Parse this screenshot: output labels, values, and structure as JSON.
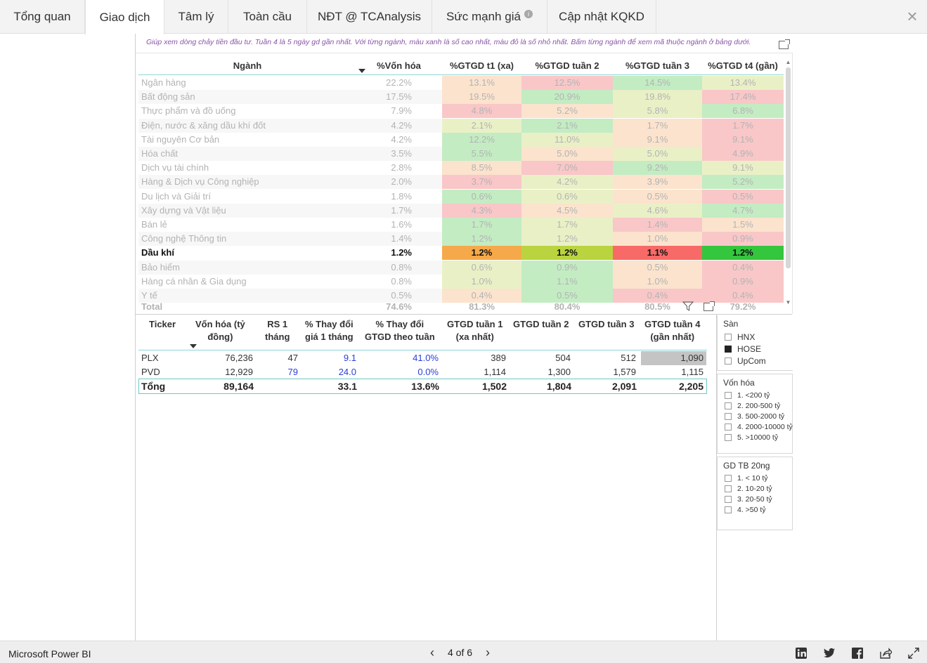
{
  "tabs": [
    {
      "label": "Tổng quan",
      "active": false
    },
    {
      "label": "Giao dịch",
      "active": true
    },
    {
      "label": "Tâm lý",
      "active": false
    },
    {
      "label": "Toàn cầu",
      "active": false
    },
    {
      "label": "NĐT @ TCAnalysis",
      "active": false
    },
    {
      "label": "Sức mạnh giá",
      "active": false,
      "info": "i"
    },
    {
      "label": "Cập nhật KQKD",
      "active": false
    }
  ],
  "close_symbol": "×",
  "hint": "Giúp xem dòng chảy tiền đầu tư. Tuần 4 là 5 ngày gd gần nhất. Với từng ngành, màu xanh là số cao nhất, màu đỏ là số nhỏ nhất. Bấm từng ngành để xem mã thuộc ngành ở bảng dưới.",
  "sector_matrix": {
    "headers": [
      "Ngành",
      "%Vốn hóa",
      "%GTGD t1 (xa)",
      "%GTGD tuần 2",
      "%GTGD tuần 3",
      "%GTGD t4 (gần)"
    ],
    "rows": [
      {
        "name": "Ngân hàng",
        "cap": "22.2%",
        "w": [
          "13.1%",
          "12.5%",
          "14.5%",
          "13.4%"
        ],
        "bg": [
          "#fbe3cd",
          "#f9c7c8",
          "#c3ecc3",
          "#eaf0c6"
        ],
        "hl": false
      },
      {
        "name": "Bất động sản",
        "cap": "17.5%",
        "w": [
          "19.5%",
          "20.9%",
          "19.8%",
          "17.4%"
        ],
        "bg": [
          "#fbe3cd",
          "#c3ecc3",
          "#eaf0c6",
          "#f9c7c8"
        ],
        "hl": false
      },
      {
        "name": "Thực phẩm và đồ uống",
        "cap": "7.9%",
        "w": [
          "4.8%",
          "5.2%",
          "5.8%",
          "6.8%"
        ],
        "bg": [
          "#f9c7c8",
          "#fbe3cd",
          "#eaf0c6",
          "#c3ecc3"
        ],
        "hl": false
      },
      {
        "name": "Điện, nước & xăng dầu khí đốt",
        "cap": "4.2%",
        "w": [
          "2.1%",
          "2.1%",
          "1.7%",
          "1.7%"
        ],
        "bg": [
          "#eaf0c6",
          "#c3ecc3",
          "#fbe3cd",
          "#f9c7c8"
        ],
        "hl": false
      },
      {
        "name": "Tài nguyên Cơ bản",
        "cap": "4.2%",
        "w": [
          "12.2%",
          "11.0%",
          "9.1%",
          "9.1%"
        ],
        "bg": [
          "#c3ecc3",
          "#eaf0c6",
          "#fbe3cd",
          "#f9c7c8"
        ],
        "hl": false
      },
      {
        "name": "Hóa chất",
        "cap": "3.5%",
        "w": [
          "5.5%",
          "5.0%",
          "5.0%",
          "4.9%"
        ],
        "bg": [
          "#c3ecc3",
          "#fbe3cd",
          "#eaf0c6",
          "#f9c7c8"
        ],
        "hl": false
      },
      {
        "name": "Dịch vụ tài chính",
        "cap": "2.8%",
        "w": [
          "8.5%",
          "7.0%",
          "9.2%",
          "9.1%"
        ],
        "bg": [
          "#fbe3cd",
          "#f9c7c8",
          "#c3ecc3",
          "#eaf0c6"
        ],
        "hl": false
      },
      {
        "name": "Hàng & Dịch vụ Công nghiệp",
        "cap": "2.0%",
        "w": [
          "3.7%",
          "4.2%",
          "3.9%",
          "5.2%"
        ],
        "bg": [
          "#f9c7c8",
          "#eaf0c6",
          "#fbe3cd",
          "#c3ecc3"
        ],
        "hl": false
      },
      {
        "name": "Du lịch và Giải trí",
        "cap": "1.8%",
        "w": [
          "0.6%",
          "0.6%",
          "0.5%",
          "0.5%"
        ],
        "bg": [
          "#c3ecc3",
          "#eaf0c6",
          "#fbe3cd",
          "#f9c7c8"
        ],
        "hl": false
      },
      {
        "name": "Xây dựng và Vật liệu",
        "cap": "1.7%",
        "w": [
          "4.3%",
          "4.5%",
          "4.6%",
          "4.7%"
        ],
        "bg": [
          "#f9c7c8",
          "#fbe3cd",
          "#eaf0c6",
          "#c3ecc3"
        ],
        "hl": false
      },
      {
        "name": "Bán lẻ",
        "cap": "1.6%",
        "w": [
          "1.7%",
          "1.7%",
          "1.4%",
          "1.5%"
        ],
        "bg": [
          "#c3ecc3",
          "#eaf0c6",
          "#f9c7c8",
          "#fbe3cd"
        ],
        "hl": false
      },
      {
        "name": "Công nghệ Thông tin",
        "cap": "1.4%",
        "w": [
          "1.2%",
          "1.2%",
          "1.0%",
          "0.9%"
        ],
        "bg": [
          "#c3ecc3",
          "#eaf0c6",
          "#fbe3cd",
          "#f9c7c8"
        ],
        "hl": false
      },
      {
        "name": "Dầu khí",
        "cap": "1.2%",
        "w": [
          "1.2%",
          "1.2%",
          "1.1%",
          "1.2%"
        ],
        "bg": [
          "#f6a94a",
          "#b9d43e",
          "#f76a67",
          "#34c63d"
        ],
        "hl": true
      },
      {
        "name": "Bảo hiểm",
        "cap": "0.8%",
        "w": [
          "0.6%",
          "0.9%",
          "0.5%",
          "0.4%"
        ],
        "bg": [
          "#eaf0c6",
          "#c3ecc3",
          "#fbe3cd",
          "#f9c7c8"
        ],
        "hl": false
      },
      {
        "name": "Hàng cá nhân & Gia dụng",
        "cap": "0.8%",
        "w": [
          "1.0%",
          "1.1%",
          "1.0%",
          "0.9%"
        ],
        "bg": [
          "#eaf0c6",
          "#c3ecc3",
          "#fbe3cd",
          "#f9c7c8"
        ],
        "hl": false
      },
      {
        "name": "Y tế",
        "cap": "0.5%",
        "w": [
          "0.4%",
          "0.5%",
          "0.4%",
          "0.4%"
        ],
        "bg": [
          "#fbe3cd",
          "#c3ecc3",
          "#f9c7c8",
          "#f9c7c8"
        ],
        "hl": false
      }
    ],
    "total": {
      "label": "Total",
      "cap": "74.6%",
      "w": [
        "81.3%",
        "80.4%",
        "80.5%",
        "79.2%"
      ]
    }
  },
  "ticker_table": {
    "headers": [
      [
        "Ticker"
      ],
      [
        "Vốn hóa (tỷ",
        "đồng)"
      ],
      [
        "RS 1",
        "tháng"
      ],
      [
        "% Thay đổi",
        "giá 1 tháng"
      ],
      [
        "% Thay đổi",
        "GTGD theo tuần"
      ],
      [
        "GTGD tuần 1",
        "(xa nhất)"
      ],
      [
        "GTGD tuần 2"
      ],
      [
        "GTGD tuần 3"
      ],
      [
        "GTGD tuần 4",
        "(gần nhất)"
      ]
    ],
    "rows": [
      {
        "cells": [
          "PLX",
          "76,236",
          "47",
          "9.1",
          "41.0%",
          "389",
          "504",
          "512",
          "1,090"
        ]
      },
      {
        "cells": [
          "PVD",
          "12,929",
          "79",
          "24.0",
          "0.0%",
          "1,114",
          "1,300",
          "1,579",
          "1,115"
        ]
      }
    ],
    "total": [
      "Tổng",
      "89,164",
      "",
      "33.1",
      "13.6%",
      "1,502",
      "1,804",
      "2,091",
      "2,205"
    ],
    "highlight_color": "#c4c4c4",
    "link_color": "#2a3fd8"
  },
  "slicers": {
    "san": {
      "title": "Sàn",
      "options": [
        {
          "label": "HNX",
          "checked": false
        },
        {
          "label": "HOSE",
          "checked": true
        },
        {
          "label": "UpCom",
          "checked": false
        }
      ]
    },
    "von_hoa": {
      "title": "Vốn hóa",
      "options": [
        {
          "label": "1. <200 tỷ"
        },
        {
          "label": "2. 200-500 tỷ"
        },
        {
          "label": "3. 500-2000 tỷ"
        },
        {
          "label": "4. 2000-10000 tỷ"
        },
        {
          "label": "5. >10000 tỷ"
        }
      ]
    },
    "gd_tb": {
      "title": "GD TB 20ng",
      "options": [
        {
          "label": "1. < 10 tỷ"
        },
        {
          "label": "2. 10-20 tỷ"
        },
        {
          "label": "3. 20-50 tỷ"
        },
        {
          "label": "4. >50 tỷ"
        }
      ]
    }
  },
  "footer": {
    "brand": "Microsoft Power BI",
    "page": "4 of 6",
    "prev": "‹",
    "next": "›",
    "share_icons": [
      "linkedin-icon",
      "twitter-icon",
      "facebook-icon",
      "share-icon",
      "fullscreen-icon"
    ]
  }
}
